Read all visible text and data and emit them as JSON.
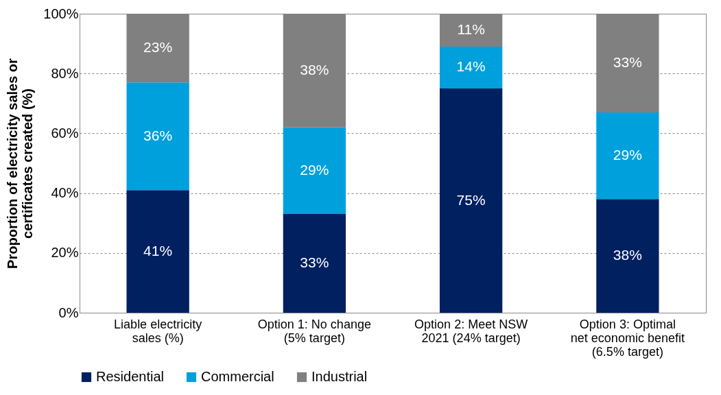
{
  "chart_data": {
    "type": "bar",
    "stacked": true,
    "ylabel": "Proportion of electricity sales or certificates created (%)",
    "categories": [
      "Liable electricity sales (%)",
      "Option 1: No change (5% target)",
      "Option 2: Meet NSW 2021 (24% target)",
      "Option 3: Optimal net economic benefit (6.5% target)"
    ],
    "series": [
      {
        "name": "Residential",
        "color": "#002060",
        "values": [
          41,
          33,
          75,
          38
        ],
        "value_labels": [
          "41%",
          "33%",
          "75%",
          "38%"
        ]
      },
      {
        "name": "Commercial",
        "color": "#00a0dc",
        "values": [
          36,
          29,
          14,
          29
        ],
        "value_labels": [
          "36%",
          "29%",
          "14%",
          "29%"
        ]
      },
      {
        "name": "Industrial",
        "color": "#808080",
        "values": [
          23,
          38,
          11,
          33
        ],
        "value_labels": [
          "23%",
          "38%",
          "11%",
          "33%"
        ]
      }
    ],
    "ylim": [
      0,
      100
    ],
    "yticks": [
      {
        "value": 0,
        "label": "0%"
      },
      {
        "value": 20,
        "label": "20%"
      },
      {
        "value": 40,
        "label": "40%"
      },
      {
        "value": 60,
        "label": "60%"
      },
      {
        "value": 80,
        "label": "80%"
      },
      {
        "value": 100,
        "label": "100%"
      }
    ],
    "grid": "y",
    "legend": "bottom"
  }
}
